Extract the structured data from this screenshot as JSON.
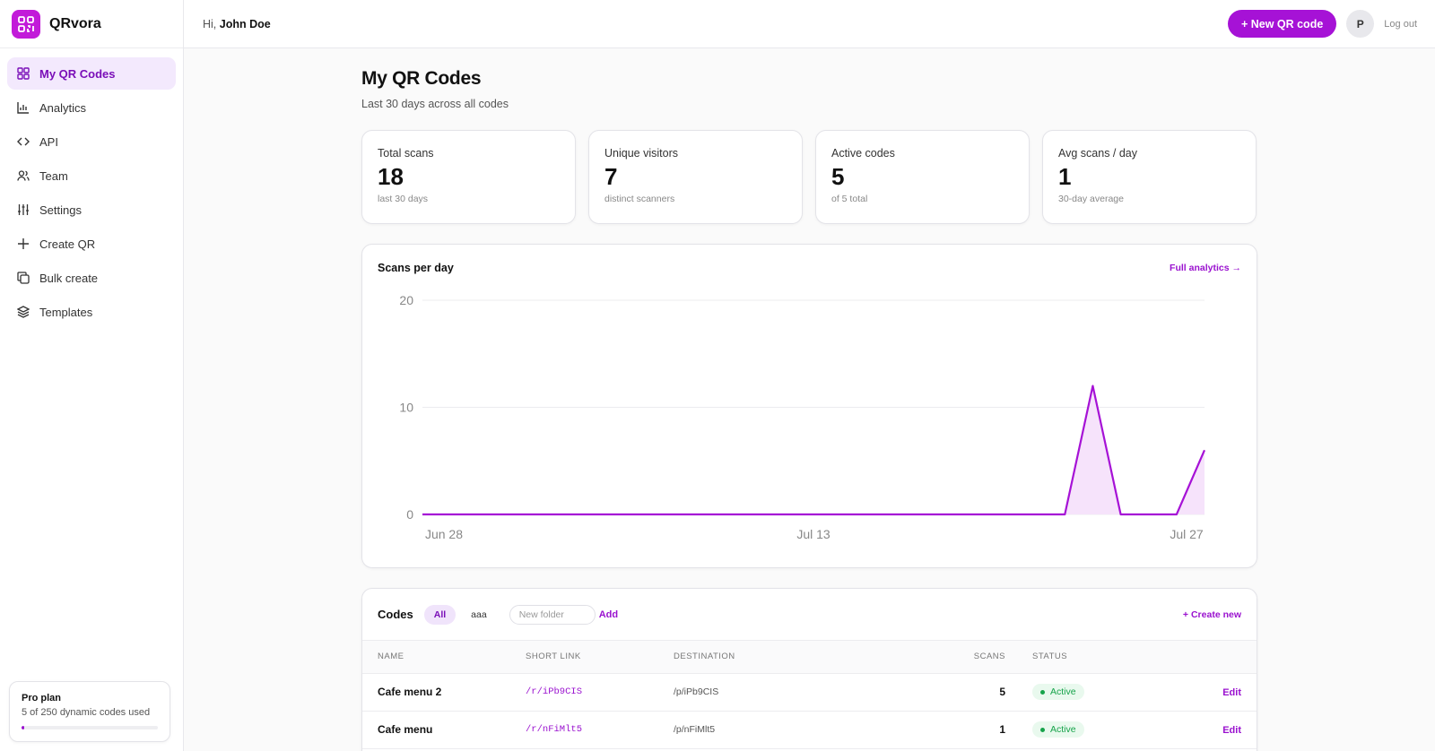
{
  "app": {
    "name": "QRvora",
    "accent": "#a612d6",
    "logo_icon": "qr-code-icon"
  },
  "sidebar": {
    "items": [
      {
        "label": "My QR Codes",
        "icon": "grid-icon",
        "active": true
      },
      {
        "label": "Analytics",
        "icon": "bar-chart-icon"
      },
      {
        "label": "API",
        "icon": "code-icon"
      },
      {
        "label": "Team",
        "icon": "users-icon"
      },
      {
        "label": "Settings",
        "icon": "sliders-icon"
      },
      {
        "label": "Create QR",
        "icon": "plus-icon"
      },
      {
        "label": "Bulk create",
        "icon": "copy-icon"
      },
      {
        "label": "Templates",
        "icon": "layers-icon"
      }
    ],
    "plan": {
      "title": "Pro plan",
      "usage": "5 of 250 dynamic codes used",
      "used": 5,
      "limit": 250
    }
  },
  "header": {
    "greeting_prefix": "Hi,",
    "user_name": "John Doe",
    "new_button": "+ New QR code",
    "avatar_initial": "P",
    "logout": "Log out"
  },
  "page": {
    "title": "My QR Codes",
    "subtitle": "Last 30 days across all codes"
  },
  "stats": [
    {
      "label": "Total scans",
      "value": "18",
      "sub": "last 30 days"
    },
    {
      "label": "Unique visitors",
      "value": "7",
      "sub": "distinct scanners"
    },
    {
      "label": "Active codes",
      "value": "5",
      "sub": "of 5 total"
    },
    {
      "label": "Avg scans / day",
      "value": "1",
      "sub": "30-day average"
    }
  ],
  "chart": {
    "title": "Scans per day",
    "link": "Full analytics →"
  },
  "chart_data": {
    "type": "area",
    "title": "Scans per day",
    "x_tick_labels": [
      "Jun 28",
      "Jul 13",
      "Jul 27"
    ],
    "y_ticks": [
      0,
      10,
      20
    ],
    "ylim": [
      0,
      20
    ],
    "grid": true,
    "series": [
      {
        "values": [
          0,
          0,
          0,
          0,
          0,
          0,
          0,
          0,
          0,
          0,
          0,
          0,
          0,
          0,
          0,
          0,
          0,
          0,
          0,
          0,
          0,
          0,
          0,
          0,
          12,
          0,
          0,
          0,
          6
        ]
      }
    ],
    "color": "#a612d6"
  },
  "codes": {
    "title": "Codes",
    "folders": [
      "All",
      "aaa"
    ],
    "folder_placeholder": "New folder",
    "add_label": "Add",
    "create_label": "+ Create new",
    "columns": {
      "name": "NAME",
      "short": "SHORT LINK",
      "dest": "DESTINATION",
      "scans": "SCANS",
      "status": "STATUS"
    },
    "rows": [
      {
        "name": "Cafe menu 2",
        "short": "/r/iPb9CIS",
        "dest": "/p/iPb9CIS",
        "scans": "5",
        "status": "Active",
        "edit": "Edit"
      },
      {
        "name": "Cafe menu",
        "short": "/r/nFiMlt5",
        "dest": "/p/nFiMlt5",
        "scans": "1",
        "status": "Active",
        "edit": "Edit"
      }
    ]
  }
}
